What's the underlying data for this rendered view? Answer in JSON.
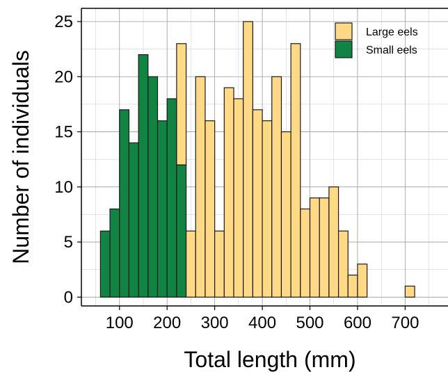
{
  "chart_data": {
    "type": "bar",
    "stacked": true,
    "title": "",
    "xlabel": "Total length (mm)",
    "ylabel": "Number of individuals",
    "xlim": [
      20,
      790
    ],
    "ylim": [
      -0.8,
      26.2
    ],
    "x_ticks": [
      100,
      200,
      300,
      400,
      500,
      600,
      700
    ],
    "y_ticks": [
      0,
      5,
      10,
      15,
      20,
      25
    ],
    "bin_width": 20,
    "bin_starts": [
      60,
      80,
      100,
      120,
      140,
      160,
      180,
      200,
      220,
      240,
      260,
      280,
      300,
      320,
      340,
      360,
      380,
      400,
      420,
      440,
      460,
      480,
      500,
      520,
      540,
      560,
      580,
      600,
      620,
      640,
      660,
      680,
      700,
      720,
      740,
      760
    ],
    "series": [
      {
        "name": "Small eels",
        "color": "#118443",
        "values": [
          6,
          8,
          17,
          14,
          22,
          20,
          16,
          18,
          12,
          0,
          0,
          0,
          0,
          0,
          0,
          0,
          0,
          0,
          0,
          0,
          0,
          0,
          0,
          0,
          0,
          0,
          0,
          0,
          0,
          0,
          0,
          0,
          0,
          0,
          0,
          0
        ]
      },
      {
        "name": "Large eels",
        "color": "#FFD985",
        "values": [
          0,
          0,
          0,
          0,
          0,
          0,
          0,
          0,
          11,
          6,
          20,
          16,
          6,
          19,
          18,
          25,
          17,
          16,
          20,
          15,
          23,
          8,
          9,
          9,
          10,
          6,
          2,
          3,
          0,
          0,
          0,
          0,
          1,
          0,
          0,
          0
        ]
      }
    ],
    "legend": {
      "position": "top-right",
      "entries": [
        {
          "label": "Large eels",
          "color": "#FFD985"
        },
        {
          "label": "Small eels",
          "color": "#118443"
        }
      ]
    },
    "grid": true
  }
}
